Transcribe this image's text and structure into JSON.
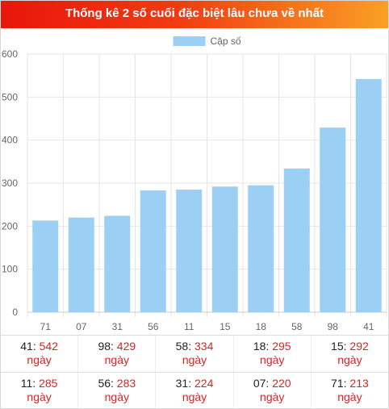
{
  "header": {
    "title": "Thống kê 2 số cuối đặc biệt lâu chưa về nhất"
  },
  "colors": {
    "bar": "#9bcff4",
    "accent": "#e02020",
    "grid": "#e6e6e6"
  },
  "chart_data": {
    "type": "bar",
    "categories": [
      "71",
      "07",
      "31",
      "56",
      "11",
      "15",
      "18",
      "58",
      "98",
      "41"
    ],
    "series": [
      {
        "name": "Cặp số",
        "values": [
          213,
          220,
          224,
          283,
          285,
          292,
          295,
          334,
          429,
          542
        ]
      }
    ],
    "ylim": [
      0,
      600
    ],
    "yticks": [
      "0",
      "100",
      "200",
      "300",
      "400",
      "500",
      "600"
    ],
    "legend": "top-center",
    "grid": true
  },
  "stats": {
    "rows": [
      [
        {
          "num": "41",
          "days": "542",
          "unit": "ngày"
        },
        {
          "num": "98",
          "days": "429",
          "unit": "ngày"
        },
        {
          "num": "58",
          "days": "334",
          "unit": "ngày"
        },
        {
          "num": "18",
          "days": "295",
          "unit": "ngày"
        },
        {
          "num": "15",
          "days": "292",
          "unit": "ngày"
        }
      ],
      [
        {
          "num": "11",
          "days": "285",
          "unit": "ngày"
        },
        {
          "num": "56",
          "days": "283",
          "unit": "ngày"
        },
        {
          "num": "31",
          "days": "224",
          "unit": "ngày"
        },
        {
          "num": "07",
          "days": "220",
          "unit": "ngày"
        },
        {
          "num": "71",
          "days": "213",
          "unit": "ngày"
        }
      ]
    ]
  }
}
